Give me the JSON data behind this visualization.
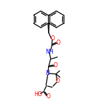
{
  "bg_color": "#ffffff",
  "bond_color": "#000000",
  "atom_colors": {
    "O": "#ff0000",
    "N": "#0000ff",
    "C": "#000000"
  },
  "line_width": 0.9,
  "font_size": 5.5,
  "figsize": [
    1.5,
    1.5
  ],
  "dpi": 100,
  "xlim": [
    2.5,
    7.5
  ],
  "ylim": [
    1.0,
    10.5
  ]
}
